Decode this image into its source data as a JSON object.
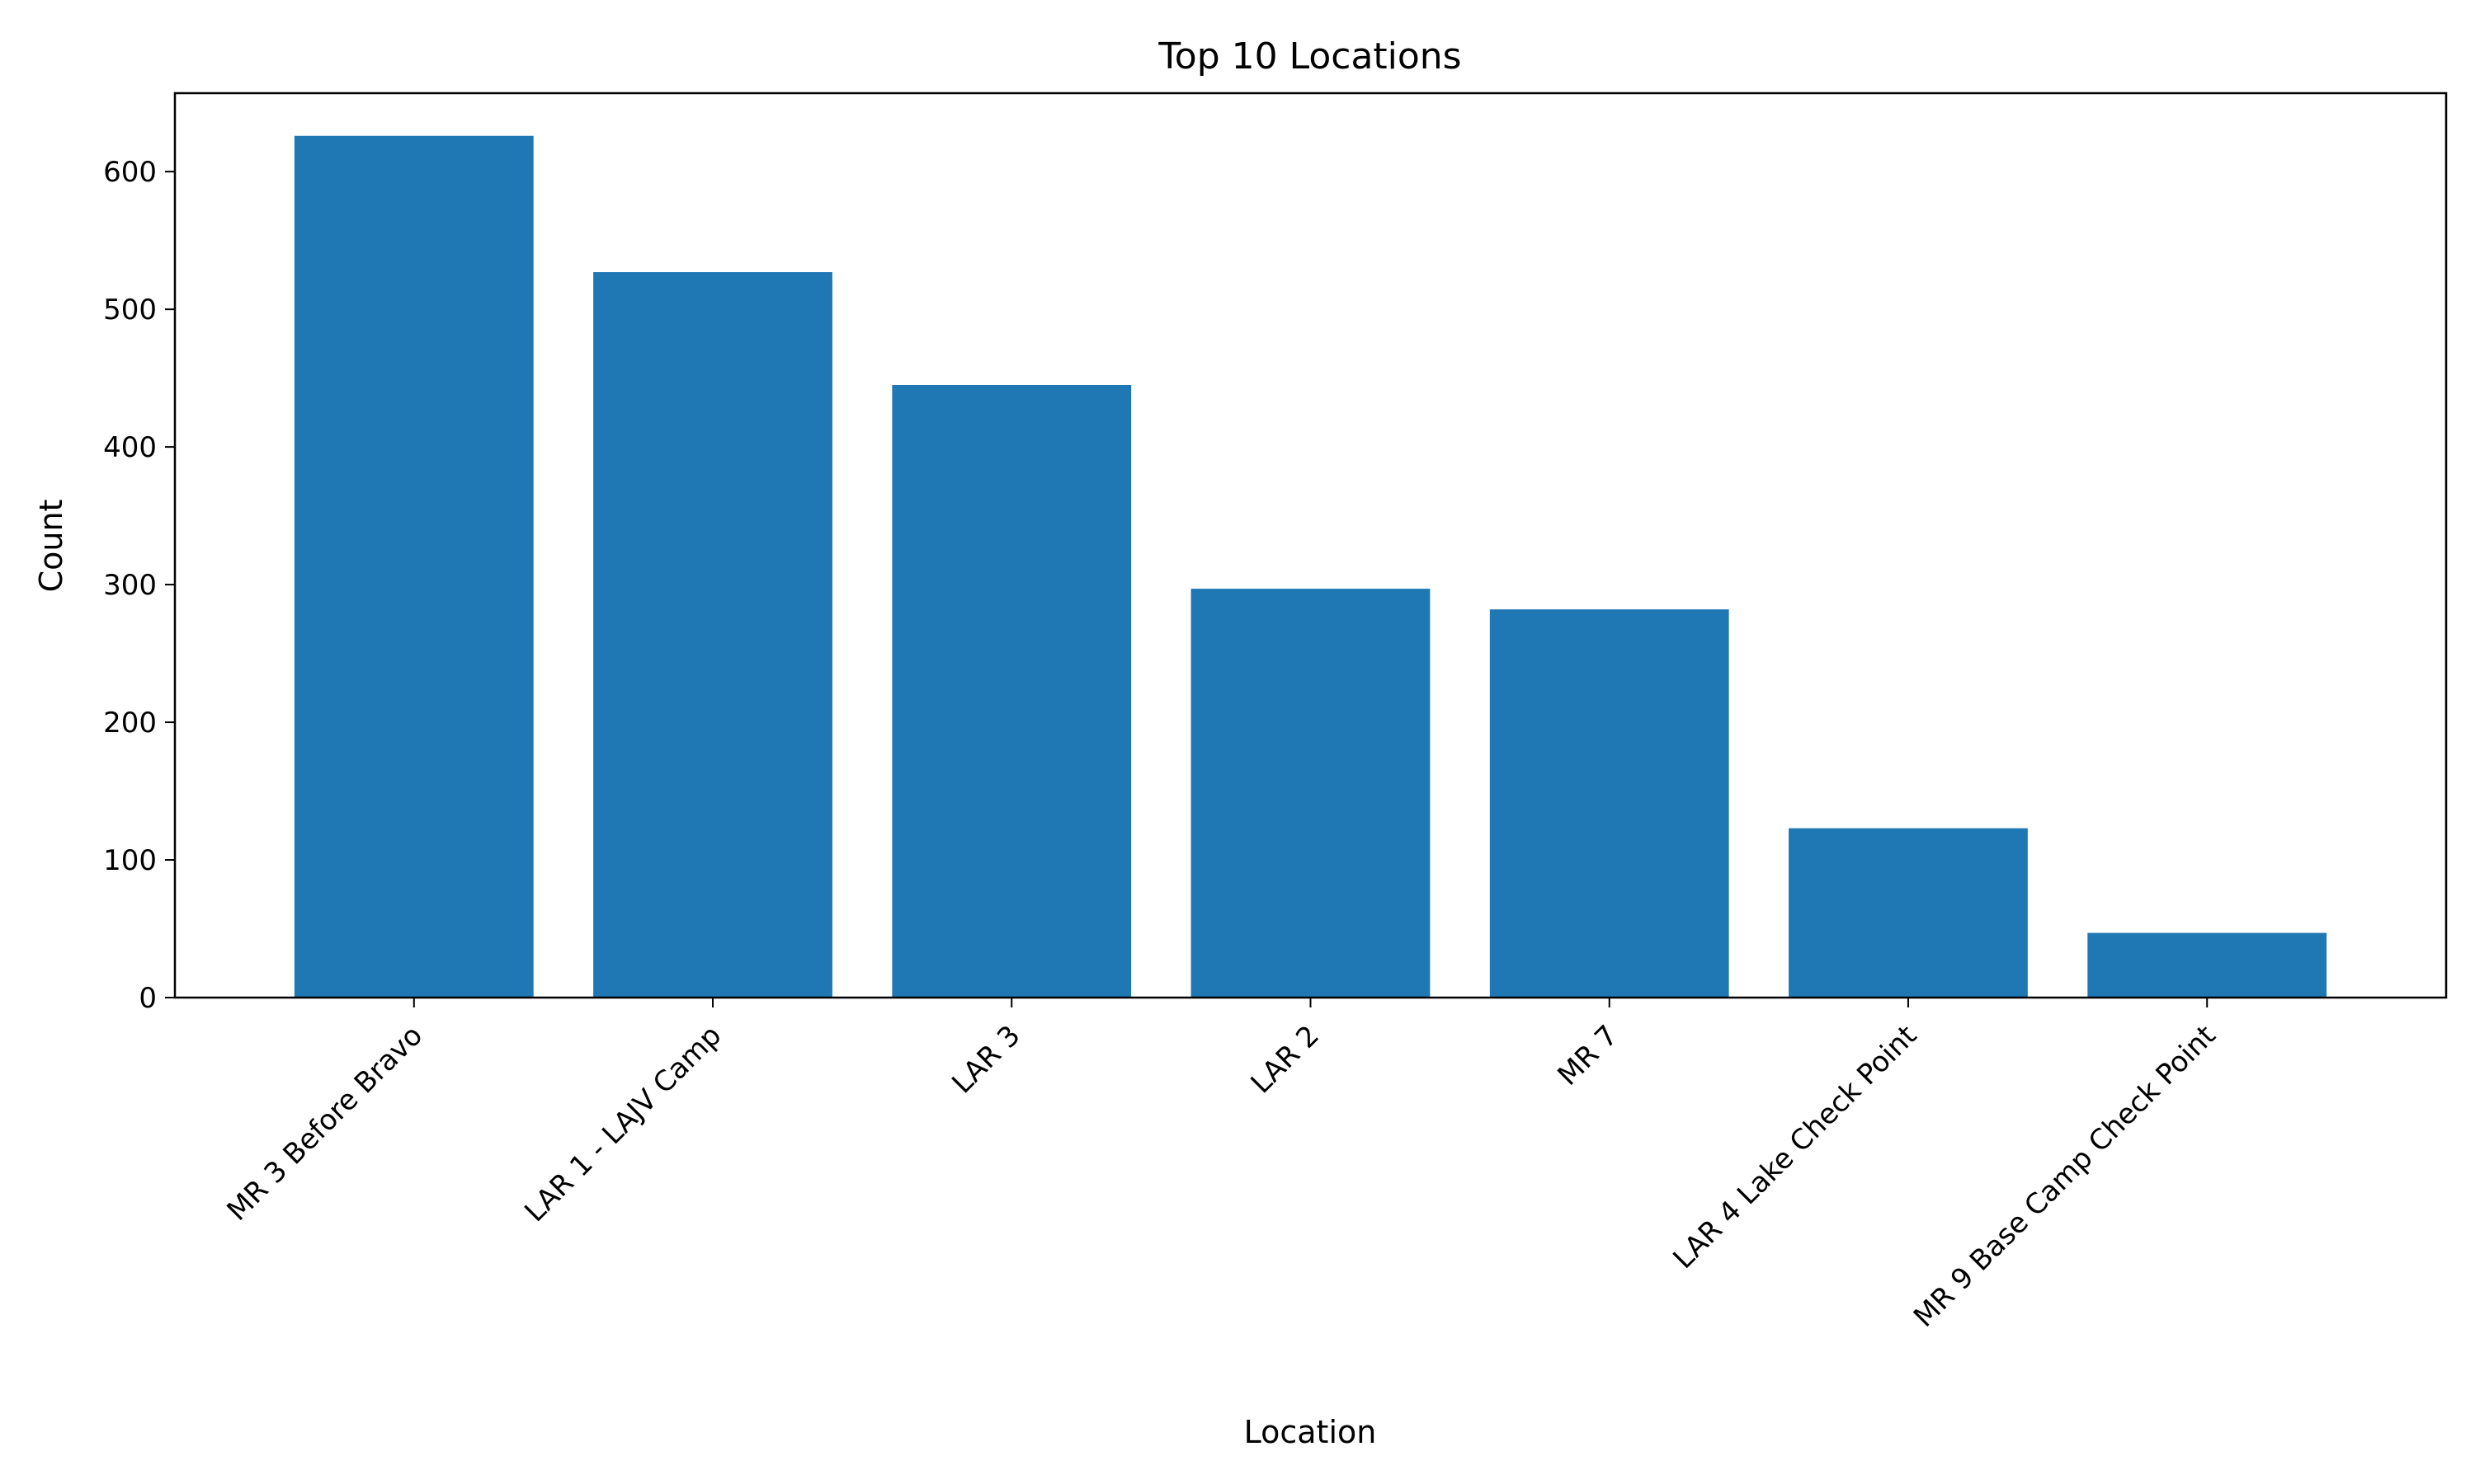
{
  "chart_data": {
    "type": "bar",
    "title": "Top 10 Locations",
    "xlabel": "Location",
    "ylabel": "Count",
    "categories": [
      "MR 3 Before Bravo",
      "LAR 1 - LAJV Camp",
      "LAR 3",
      "LAR 2",
      "MR 7",
      "LAR 4 Lake Check Point",
      "MR 9 Base Camp Check Point"
    ],
    "values": [
      626,
      527,
      445,
      297,
      282,
      123,
      47
    ],
    "ylim": [
      0,
      657
    ],
    "yticks": [
      0,
      100,
      200,
      300,
      400,
      500,
      600
    ],
    "bar_color": "#1f77b4",
    "grid": false,
    "legend": "none"
  }
}
